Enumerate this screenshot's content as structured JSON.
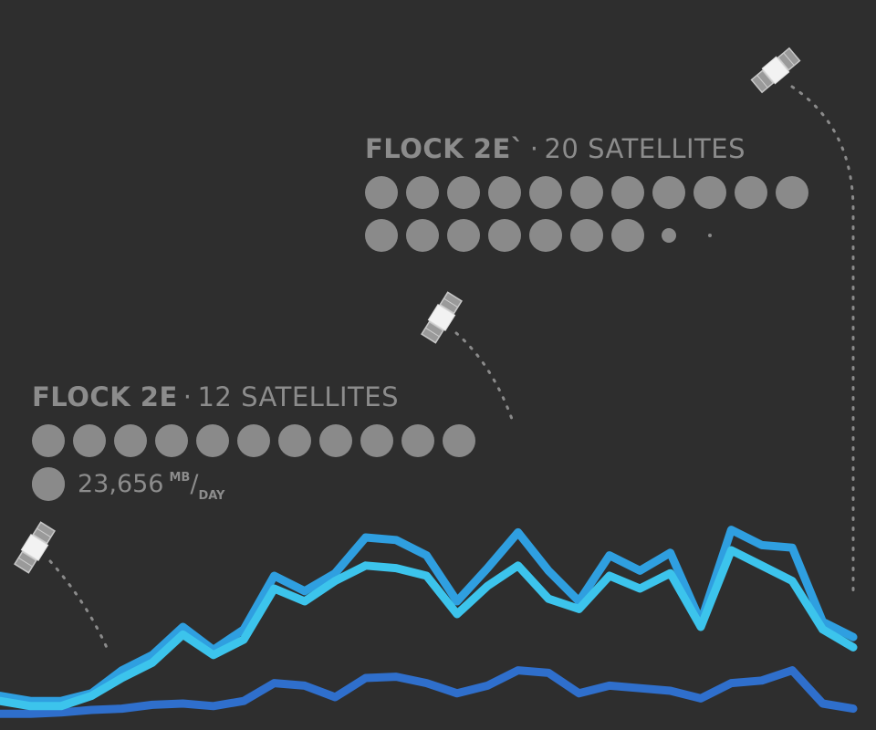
{
  "flocks": [
    {
      "name": "FLOCK 2E",
      "separator": "·",
      "count_label": "12 SATELLITES",
      "satellites": 12,
      "rate_value": "23,656",
      "rate_unit_top": "MB",
      "rate_unit_bottom": "DAY"
    },
    {
      "name": "FLOCK 2E`",
      "separator": "·",
      "count_label": "20 SATELLITES",
      "satellites": 20
    }
  ],
  "colors": {
    "background": "#2e2e2e",
    "text": "#8c8c8c",
    "dot": "#8a8a8a",
    "series_a": "#2f9fe0",
    "series_b": "#3cc4ec",
    "series_c": "#2f6fcc"
  },
  "icons": [
    "satellite-icon"
  ],
  "chart_data": {
    "type": "line",
    "title": "",
    "xlabel": "",
    "ylabel": "",
    "ylim": [
      0,
      100
    ],
    "x": [
      0,
      1,
      2,
      3,
      4,
      5,
      6,
      7,
      8,
      9,
      10,
      11,
      12,
      13,
      14,
      15,
      16,
      17,
      18,
      19,
      20,
      21,
      22,
      23,
      24,
      25,
      26,
      27,
      28
    ],
    "series": [
      {
        "values": [
          8,
          6,
          6,
          9,
          18,
          24,
          35,
          26,
          34,
          55,
          49,
          56,
          70,
          69,
          63,
          45,
          58,
          72,
          57,
          45,
          63,
          57,
          64,
          37,
          73,
          67,
          66,
          37,
          31
        ],
        "color": "#2f9fe0"
      },
      {
        "values": [
          6,
          4,
          4,
          8,
          15,
          21,
          32,
          24,
          30,
          50,
          45,
          53,
          59,
          58,
          55,
          40,
          51,
          59,
          46,
          42,
          55,
          50,
          56,
          35,
          65,
          59,
          53,
          34,
          27
        ],
        "color": "#3cc4ec"
      },
      {
        "values": [
          1,
          1,
          1.5,
          2.5,
          3,
          4.5,
          5,
          4,
          6,
          13,
          12,
          7.5,
          15,
          15.5,
          13,
          9,
          12,
          18,
          17,
          9,
          12,
          11,
          10,
          7,
          13,
          14,
          18,
          5,
          3
        ],
        "color": "#2f6fcc"
      }
    ]
  }
}
